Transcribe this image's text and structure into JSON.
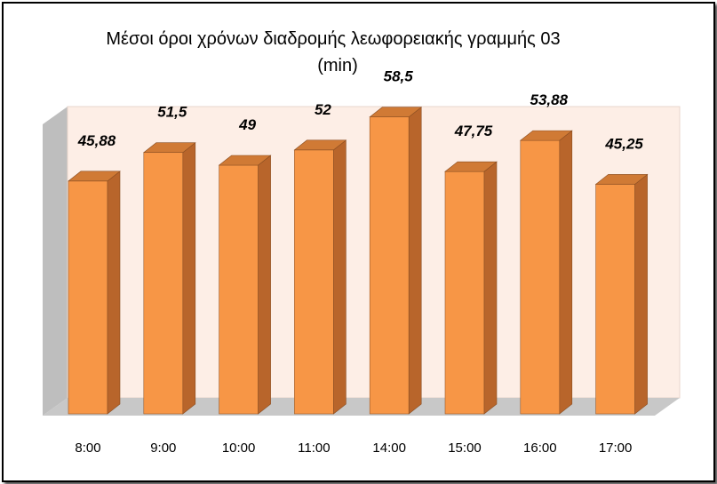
{
  "chart_data": {
    "type": "bar",
    "title": "Μέσοι όροι χρόνων διαδρομής λεωφορειακής γραμμής 03",
    "subtitle": "(min)",
    "categories": [
      "8:00",
      "9:00",
      "10:00",
      "11:00",
      "14:00",
      "15:00",
      "16:00",
      "17:00"
    ],
    "values": [
      45.88,
      51.5,
      49,
      52,
      58.5,
      47.75,
      53.88,
      45.25
    ],
    "data_labels": [
      "45,88",
      "51,5",
      "49",
      "52",
      "58,5",
      "47,75",
      "53,88",
      "45,25"
    ],
    "xlabel": "",
    "ylabel": "",
    "ylim": [
      0,
      70
    ],
    "grid": false,
    "legend": "none",
    "style": "3d-column",
    "colors": {
      "bar_front": "#F79646",
      "bar_side": "#B8652B",
      "bar_top": "#D07A35",
      "back_wall": "#FDEEE6",
      "side_wall": "#BEBEBE",
      "floor": "#C8C8C8"
    }
  }
}
